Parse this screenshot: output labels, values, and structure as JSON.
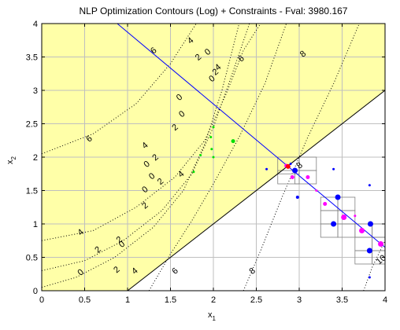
{
  "chart_data": {
    "type": "contour",
    "title": "NLP Optimization Contours (Log) + Constraints - Fval: 3980.167",
    "xlabel": "x",
    "xlabel_sub": "1",
    "ylabel": "x",
    "ylabel_sub": "2",
    "xlim": [
      0,
      4
    ],
    "ylim": [
      0,
      4
    ],
    "x_ticks": [
      0,
      0.5,
      1,
      1.5,
      2,
      2.5,
      3,
      3.5,
      4
    ],
    "x_tick_labels": [
      "0",
      "0.5",
      "1",
      "1.5",
      "2",
      "2.5",
      "3",
      "3.5",
      "4"
    ],
    "y_ticks": [
      0,
      0.5,
      1,
      1.5,
      2,
      2.5,
      3,
      3.5,
      4
    ],
    "y_tick_labels": [
      "0",
      "0.5",
      "1",
      "1.5",
      "2",
      "2.5",
      "3",
      "3.5",
      "4"
    ],
    "grid": true,
    "colors": {
      "feasible_fill": "#ffffa8",
      "constraint_line": "#000000",
      "linear_constraint": "#0000ff",
      "grid": "#bfbfbf",
      "contour": "#000000",
      "green_points": "#00e000",
      "blue_points": "#0000ff",
      "magenta_points": "#ff00ff",
      "optimum": "#ff0000",
      "box": "#808080"
    },
    "constraints": [
      {
        "name": "boundary",
        "points": [
          [
            1,
            0
          ],
          [
            4,
            3
          ]
        ]
      },
      {
        "name": "linear",
        "points": [
          [
            0.88,
            4
          ],
          [
            2.87,
            1.86
          ],
          [
            4,
            0.65
          ]
        ]
      }
    ],
    "contour_lines": [
      {
        "label": "0",
        "points": [
          [
            0,
            0.05
          ],
          [
            0.4,
            0.2
          ],
          [
            0.85,
            0.5
          ],
          [
            1.3,
            0.95
          ],
          [
            1.65,
            1.5
          ],
          [
            1.9,
            2.2
          ],
          [
            2.1,
            3.0
          ],
          [
            2.3,
            4.0
          ]
        ]
      },
      {
        "label": "2",
        "points": [
          [
            0,
            0.3
          ],
          [
            0.5,
            0.45
          ],
          [
            0.95,
            0.75
          ],
          [
            1.4,
            1.2
          ],
          [
            1.75,
            1.75
          ],
          [
            2.0,
            2.45
          ],
          [
            2.22,
            3.25
          ],
          [
            2.42,
            4.0
          ]
        ]
      },
      {
        "label": "4",
        "points": [
          [
            0,
            0.75
          ],
          [
            0.6,
            0.9
          ],
          [
            1.1,
            1.25
          ],
          [
            1.55,
            1.7
          ],
          [
            1.9,
            2.25
          ],
          [
            2.15,
            2.95
          ],
          [
            2.35,
            3.6
          ],
          [
            2.55,
            4.0
          ]
        ]
      },
      {
        "label": "6",
        "points": [
          [
            0,
            2.05
          ],
          [
            0.6,
            2.35
          ],
          [
            1.1,
            2.8
          ],
          [
            1.5,
            3.4
          ],
          [
            1.8,
            4.0
          ]
        ]
      },
      {
        "label": "6",
        "points": [
          [
            1.25,
            0
          ],
          [
            1.5,
            0.55
          ],
          [
            1.75,
            1.05
          ],
          [
            2.0,
            1.6
          ],
          [
            2.3,
            2.3
          ],
          [
            2.6,
            3.1
          ],
          [
            2.85,
            4.0
          ]
        ]
      },
      {
        "label": "8",
        "points": [
          [
            2.35,
            0
          ],
          [
            2.55,
            0.6
          ],
          [
            2.8,
            1.4
          ],
          [
            3.1,
            2.3
          ],
          [
            3.4,
            3.1
          ],
          [
            3.7,
            4.0
          ]
        ]
      },
      {
        "label": "10",
        "points": [
          [
            3.75,
            0
          ],
          [
            3.85,
            0.35
          ],
          [
            4.0,
            0.75
          ]
        ]
      }
    ],
    "contour_labels": [
      {
        "text": "6",
        "x": 1.3,
        "y": 3.6
      },
      {
        "text": "4",
        "x": 1.73,
        "y": 3.75
      },
      {
        "text": "2",
        "x": 1.82,
        "y": 3.5
      },
      {
        "text": "0",
        "x": 1.93,
        "y": 3.58
      },
      {
        "text": "0",
        "x": 1.98,
        "y": 3.18
      },
      {
        "text": "2",
        "x": 2.02,
        "y": 3.28
      },
      {
        "text": "4",
        "x": 2.05,
        "y": 3.35
      },
      {
        "text": "6",
        "x": 2.32,
        "y": 3.48
      },
      {
        "text": "8",
        "x": 3.04,
        "y": 3.55
      },
      {
        "text": "0",
        "x": 1.6,
        "y": 2.9
      },
      {
        "text": "0",
        "x": 1.63,
        "y": 2.65
      },
      {
        "text": "2",
        "x": 1.55,
        "y": 2.45
      },
      {
        "text": "4",
        "x": 1.2,
        "y": 2.18
      },
      {
        "text": "6",
        "x": 0.55,
        "y": 2.28
      },
      {
        "text": "0",
        "x": 1.22,
        "y": 1.9
      },
      {
        "text": "2",
        "x": 1.32,
        "y": 2.0
      },
      {
        "text": "0",
        "x": 1.28,
        "y": 1.72
      },
      {
        "text": "2",
        "x": 1.38,
        "y": 1.64
      },
      {
        "text": "4",
        "x": 1.62,
        "y": 1.75
      },
      {
        "text": "0",
        "x": 1.2,
        "y": 1.52
      },
      {
        "text": "2",
        "x": 1.2,
        "y": 1.28
      },
      {
        "text": "4",
        "x": 0.45,
        "y": 0.88
      },
      {
        "text": "2",
        "x": 0.9,
        "y": 0.77
      },
      {
        "text": "0",
        "x": 0.93,
        "y": 0.7
      },
      {
        "text": "2",
        "x": 0.65,
        "y": 0.62
      },
      {
        "text": "0",
        "x": 0.45,
        "y": 0.28
      },
      {
        "text": "2",
        "x": 0.87,
        "y": 0.32
      },
      {
        "text": "4",
        "x": 1.08,
        "y": 0.3
      },
      {
        "text": "6",
        "x": 1.55,
        "y": 0.3
      },
      {
        "text": "8",
        "x": 2.45,
        "y": 0.3
      },
      {
        "text": "8",
        "x": 3.0,
        "y": 1.88
      },
      {
        "text": "10",
        "x": 3.95,
        "y": 0.47
      }
    ],
    "points": {
      "green": [
        {
          "x": 1.77,
          "y": 1.78,
          "r": 1.5
        },
        {
          "x": 1.85,
          "y": 2.03,
          "r": 1.5
        },
        {
          "x": 1.98,
          "y": 2.12,
          "r": 1.5
        },
        {
          "x": 2.0,
          "y": 2.0,
          "r": 1.5
        },
        {
          "x": 1.97,
          "y": 2.3,
          "r": 1.5
        },
        {
          "x": 2.0,
          "y": 2.45,
          "r": 1.5
        },
        {
          "x": 2.23,
          "y": 2.24,
          "r": 2.5
        }
      ],
      "blue": [
        {
          "x": 2.62,
          "y": 1.82,
          "r": 1.5
        },
        {
          "x": 2.9,
          "y": 1.9,
          "r": 1.5
        },
        {
          "x": 2.95,
          "y": 1.8,
          "r": 3.5
        },
        {
          "x": 2.98,
          "y": 1.4,
          "r": 2
        },
        {
          "x": 3.4,
          "y": 1.82,
          "r": 1.5
        },
        {
          "x": 3.45,
          "y": 1.4,
          "r": 3.5
        },
        {
          "x": 3.4,
          "y": 1.0,
          "r": 3.5
        },
        {
          "x": 3.82,
          "y": 1.58,
          "r": 1.5
        },
        {
          "x": 3.83,
          "y": 1.0,
          "r": 3.5
        },
        {
          "x": 3.82,
          "y": 0.6,
          "r": 3.5
        },
        {
          "x": 3.82,
          "y": 0.2,
          "r": 1.5
        }
      ],
      "magenta": [
        {
          "x": 2.85,
          "y": 1.87,
          "r": 2.5
        },
        {
          "x": 2.92,
          "y": 1.7,
          "r": 2.5
        },
        {
          "x": 3.1,
          "y": 1.7,
          "r": 2.5
        },
        {
          "x": 3.2,
          "y": 1.5,
          "r": 1.5
        },
        {
          "x": 3.3,
          "y": 1.3,
          "r": 2.5
        },
        {
          "x": 3.52,
          "y": 1.1,
          "r": 3.5
        },
        {
          "x": 3.65,
          "y": 1.12,
          "r": 1.5
        },
        {
          "x": 3.73,
          "y": 0.9,
          "r": 3.5
        },
        {
          "x": 3.95,
          "y": 0.7,
          "r": 3.5
        }
      ],
      "optimum": [
        {
          "x": 2.87,
          "y": 1.86,
          "r": 3
        }
      ]
    },
    "boxes": [
      {
        "x": [
          2.75,
          3.0
        ],
        "y": [
          1.75,
          2.0
        ]
      },
      {
        "x": [
          2.75,
          3.0
        ],
        "y": [
          1.6,
          1.8
        ]
      },
      {
        "x": [
          2.95,
          3.2
        ],
        "y": [
          1.6,
          1.8
        ]
      },
      {
        "x": [
          3.0,
          3.2
        ],
        "y": [
          1.8,
          2.0
        ]
      },
      {
        "x": [
          3.25,
          3.45
        ],
        "y": [
          1.2,
          1.4
        ]
      },
      {
        "x": [
          3.45,
          3.65
        ],
        "y": [
          1.2,
          1.4
        ]
      },
      {
        "x": [
          3.25,
          3.45
        ],
        "y": [
          1.0,
          1.2
        ]
      },
      {
        "x": [
          3.45,
          3.65
        ],
        "y": [
          1.0,
          1.2
        ]
      },
      {
        "x": [
          3.25,
          3.45
        ],
        "y": [
          0.8,
          1.0
        ]
      },
      {
        "x": [
          3.45,
          3.65
        ],
        "y": [
          0.8,
          1.0
        ]
      },
      {
        "x": [
          3.65,
          3.85
        ],
        "y": [
          0.8,
          1.0
        ]
      },
      {
        "x": [
          3.85,
          4.0
        ],
        "y": [
          0.8,
          1.0
        ]
      },
      {
        "x": [
          3.65,
          3.85
        ],
        "y": [
          0.6,
          0.8
        ]
      },
      {
        "x": [
          3.85,
          4.0
        ],
        "y": [
          0.6,
          0.8
        ]
      },
      {
        "x": [
          3.65,
          3.85
        ],
        "y": [
          0.4,
          0.6
        ]
      },
      {
        "x": [
          3.85,
          4.0
        ],
        "y": [
          0.4,
          0.6
        ]
      }
    ]
  }
}
